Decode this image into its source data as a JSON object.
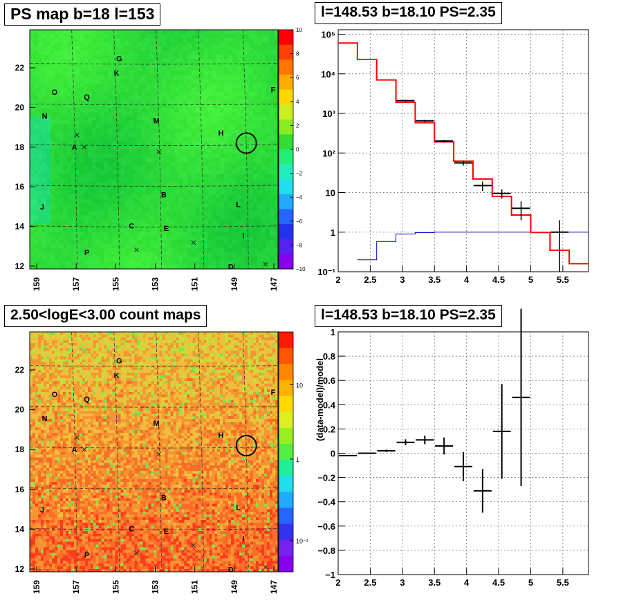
{
  "titles": {
    "ps_map": "PS map b=18 l=153",
    "spectrum": "l=148.53 b=18.10 PS=2.35",
    "count_map": "2.50<logE<3.00 count maps",
    "residual": "l=148.53 b=18.10 PS=2.35"
  },
  "map_labels": [
    "G",
    "K",
    "O",
    "Q",
    "F",
    "N",
    "M",
    "H",
    "A",
    "B",
    "J",
    "L",
    "C",
    "E",
    "I",
    "P",
    "D"
  ],
  "map_axis": {
    "x_ticks": [
      "159",
      "157",
      "155",
      "153",
      "151",
      "149",
      "147"
    ],
    "y_ticks": [
      "22",
      "20",
      "18",
      "16",
      "14",
      "12"
    ],
    "x_range": [
      159,
      147
    ],
    "y_range": [
      12,
      23.6
    ]
  },
  "ps_colorbar": {
    "ticks": [
      "10",
      "8",
      "6",
      "4",
      "2",
      "0",
      "−2",
      "−4",
      "−6",
      "−8",
      "−10"
    ]
  },
  "count_colorbar": {
    "ticks": [
      "10",
      "1",
      "10⁻¹"
    ]
  },
  "colors": {
    "model_line": "#ff0000",
    "data_markers": "#000000",
    "background_model": "#0000cc",
    "ps_map_base": "#33dd33",
    "count_map_base": "#f08030"
  },
  "chart_data": [
    {
      "type": "heatmap",
      "title": "PS map b=18 l=153",
      "x_range": [
        159,
        147
      ],
      "y_range": [
        12,
        23.6
      ],
      "z_range": [
        -10,
        10
      ],
      "marked_source": {
        "l": 148.53,
        "b": 18.1
      }
    },
    {
      "type": "line",
      "title": "l=148.53 b=18.10 PS=2.35",
      "y_scale": "log",
      "xlim": [
        2,
        5.9
      ],
      "ylim": [
        0.1,
        130000
      ],
      "x_ticks": [
        "2",
        "2.5",
        "3",
        "3.5",
        "4",
        "4.5",
        "5",
        "5.5"
      ],
      "y_ticks": [
        "10⁵",
        "10⁴",
        "10³",
        "10²",
        "10",
        "1",
        "10⁻¹"
      ],
      "model_steps": [
        {
          "x0": 2.0,
          "x1": 2.3,
          "y": 60000
        },
        {
          "x0": 2.3,
          "x1": 2.6,
          "y": 23000
        },
        {
          "x0": 2.6,
          "x1": 2.9,
          "y": 7000
        },
        {
          "x0": 2.9,
          "x1": 3.2,
          "y": 1900
        },
        {
          "x0": 3.2,
          "x1": 3.5,
          "y": 580
        },
        {
          "x0": 3.5,
          "x1": 3.8,
          "y": 190
        },
        {
          "x0": 3.8,
          "x1": 4.1,
          "y": 62
        },
        {
          "x0": 4.1,
          "x1": 4.4,
          "y": 22
        },
        {
          "x0": 4.4,
          "x1": 4.7,
          "y": 8
        },
        {
          "x0": 4.7,
          "x1": 5.0,
          "y": 2.7
        },
        {
          "x0": 5.0,
          "x1": 5.3,
          "y": 0.98
        },
        {
          "x0": 5.3,
          "x1": 5.6,
          "y": 0.35
        },
        {
          "x0": 5.6,
          "x1": 5.9,
          "y": 0.16
        }
      ],
      "background_steps": [
        {
          "x0": 2.3,
          "x1": 2.6,
          "y": 0.2
        },
        {
          "x0": 2.6,
          "x1": 2.9,
          "y": 0.58
        },
        {
          "x0": 2.9,
          "x1": 3.2,
          "y": 0.9
        },
        {
          "x0": 3.2,
          "x1": 3.5,
          "y": 0.97
        },
        {
          "x0": 3.5,
          "x1": 5.9,
          "y": 1.0
        }
      ],
      "data_points": [
        {
          "x": 3.05,
          "y": 2100,
          "ylo": 2000,
          "yhi": 2200
        },
        {
          "x": 3.35,
          "y": 650,
          "ylo": 610,
          "yhi": 690
        },
        {
          "x": 3.65,
          "y": 200,
          "ylo": 185,
          "yhi": 215
        },
        {
          "x": 3.95,
          "y": 56,
          "ylo": 48,
          "yhi": 64
        },
        {
          "x": 4.25,
          "y": 15,
          "ylo": 11,
          "yhi": 19
        },
        {
          "x": 4.55,
          "y": 9.5,
          "ylo": 7,
          "yhi": 12
        },
        {
          "x": 4.85,
          "y": 4,
          "ylo": 2,
          "yhi": 6
        },
        {
          "x": 5.45,
          "y": 1,
          "ylo": 0.1,
          "yhi": 2
        }
      ]
    },
    {
      "type": "heatmap",
      "title": "2.50<logE<3.00 count maps",
      "x_range": [
        159,
        147
      ],
      "y_range": [
        12,
        23.6
      ],
      "z_scale": "log",
      "marked_source": {
        "l": 148.53,
        "b": 18.1
      }
    },
    {
      "type": "scatter",
      "title": "l=148.53 b=18.10 PS=2.35",
      "ylabel": "(data-model)/model",
      "xlim": [
        2,
        5.9
      ],
      "ylim": [
        -1,
        1
      ],
      "x_ticks": [
        "2",
        "2.5",
        "3",
        "3.5",
        "4",
        "4.5",
        "5",
        "5.5"
      ],
      "y_ticks": [
        "1",
        "0.8",
        "0.6",
        "0.4",
        "0.2",
        "0",
        "−0.2",
        "−0.4",
        "−0.6",
        "−0.8",
        "−1"
      ],
      "points": [
        {
          "x": 2.15,
          "y": -0.02,
          "err": 0.005
        },
        {
          "x": 2.45,
          "y": 0.0,
          "err": 0.005
        },
        {
          "x": 2.75,
          "y": 0.02,
          "err": 0.01
        },
        {
          "x": 3.05,
          "y": 0.09,
          "err": 0.025
        },
        {
          "x": 3.35,
          "y": 0.11,
          "err": 0.035
        },
        {
          "x": 3.65,
          "y": 0.06,
          "err": 0.07
        },
        {
          "x": 3.95,
          "y": -0.11,
          "err": 0.12
        },
        {
          "x": 4.25,
          "y": -0.31,
          "err": 0.18
        },
        {
          "x": 4.55,
          "y": 0.18,
          "err": 0.39
        },
        {
          "x": 4.85,
          "y": 0.46,
          "err": 0.73
        }
      ]
    }
  ]
}
